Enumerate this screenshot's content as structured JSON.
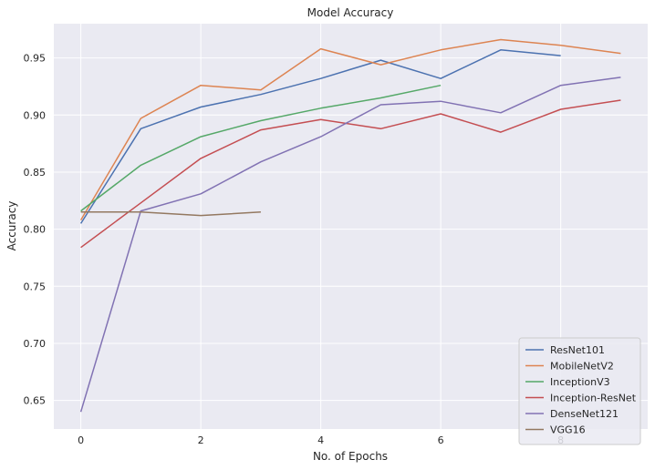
{
  "chart_data": {
    "type": "line",
    "title": "Model Accuracy",
    "xlabel": "No. of Epochs",
    "ylabel": "Accuracy",
    "xlim": [
      -0.45,
      9.45
    ],
    "ylim": [
      0.625,
      0.98
    ],
    "x_ticks": [
      0,
      2,
      4,
      6,
      8
    ],
    "y_ticks": [
      0.65,
      0.7,
      0.75,
      0.8,
      0.85,
      0.9,
      0.95
    ],
    "grid": true,
    "legend_position": "bottom-right",
    "background": "#eaeaf2",
    "series": [
      {
        "name": "ResNet101",
        "color": "#4c72b0",
        "x": [
          0,
          1,
          2,
          3,
          4,
          5,
          6,
          7,
          8
        ],
        "values": [
          0.805,
          0.888,
          0.907,
          0.918,
          0.932,
          0.948,
          0.932,
          0.957,
          0.952
        ]
      },
      {
        "name": "MobileNetV2",
        "color": "#dd8452",
        "x": [
          0,
          1,
          2,
          3,
          4,
          5,
          6,
          7,
          8,
          9
        ],
        "values": [
          0.808,
          0.897,
          0.926,
          0.922,
          0.958,
          0.944,
          0.957,
          0.966,
          0.961,
          0.954
        ]
      },
      {
        "name": "InceptionV3",
        "color": "#55a868",
        "x": [
          0,
          1,
          2,
          3,
          4,
          5,
          6
        ],
        "values": [
          0.816,
          0.856,
          0.881,
          0.895,
          0.906,
          0.915,
          0.926
        ]
      },
      {
        "name": "Inception-ResNet",
        "color": "#c44e52",
        "x": [
          0,
          1,
          2,
          3,
          4,
          5,
          6,
          7,
          8,
          9
        ],
        "values": [
          0.784,
          0.823,
          0.862,
          0.887,
          0.896,
          0.888,
          0.901,
          0.885,
          0.905,
          0.913
        ]
      },
      {
        "name": "DenseNet121",
        "color": "#8172b3",
        "x": [
          0,
          1,
          2,
          3,
          4,
          5,
          6,
          7,
          8,
          9
        ],
        "values": [
          0.64,
          0.816,
          0.831,
          0.859,
          0.881,
          0.909,
          0.912,
          0.902,
          0.926,
          0.933
        ]
      },
      {
        "name": "VGG16",
        "color": "#937860",
        "x": [
          0,
          1,
          2,
          3
        ],
        "values": [
          0.815,
          0.815,
          0.812,
          0.815
        ]
      }
    ]
  }
}
